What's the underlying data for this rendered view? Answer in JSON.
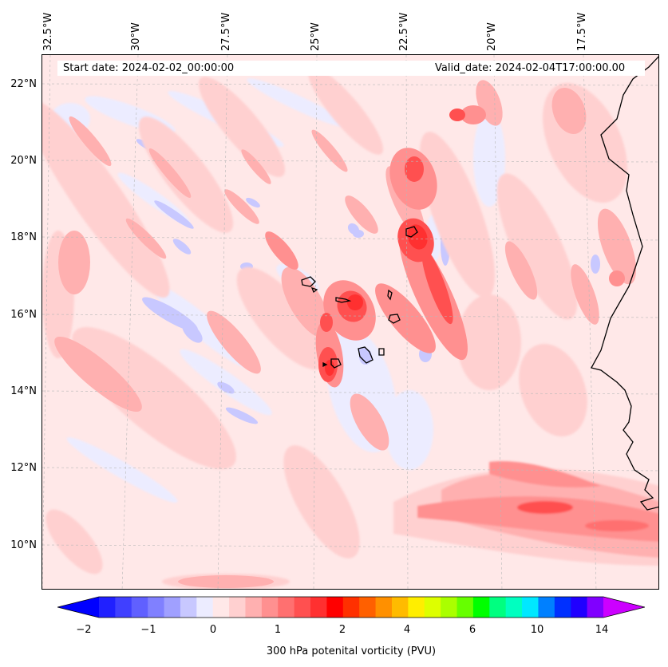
{
  "map": {
    "start_date": "Start date: 2024-02-02_00:00:00",
    "valid_date": "Valid_date: 2024-02-04T17:00:00.00",
    "lon_labels": [
      "32.5°W",
      "30°W",
      "27.5°W",
      "25°W",
      "22.5°W",
      "20°W",
      "17.5°W"
    ],
    "lat_labels": [
      "22°N",
      "20°N",
      "18°N",
      "16°N",
      "14°N",
      "12°N",
      "10°N"
    ],
    "gridlines": true
  },
  "colorbar": {
    "label": "300 hPa potenital vorticity (PVU)",
    "tick_labels": [
      "−2",
      "−1",
      "0",
      "1",
      "2",
      "4",
      "6",
      "10",
      "14"
    ],
    "colors": [
      "#0000ff",
      "#2020ff",
      "#4040ff",
      "#6060ff",
      "#8080ff",
      "#a0a0ff",
      "#c8c8ff",
      "#ececff",
      "#ffe8e8",
      "#ffd0d0",
      "#ffb0b0",
      "#ff9090",
      "#ff7070",
      "#ff5050",
      "#ff3030",
      "#ff0000",
      "#ff3000",
      "#ff6000",
      "#ff9000",
      "#ffbb00",
      "#ffee00",
      "#ddff00",
      "#aaff00",
      "#66ff00",
      "#00ff00",
      "#00ff80",
      "#00ffc0",
      "#00e8ff",
      "#0080ff",
      "#0030ff",
      "#2000ff",
      "#8000ff",
      "#cc00ff"
    ],
    "extend": "both"
  }
}
